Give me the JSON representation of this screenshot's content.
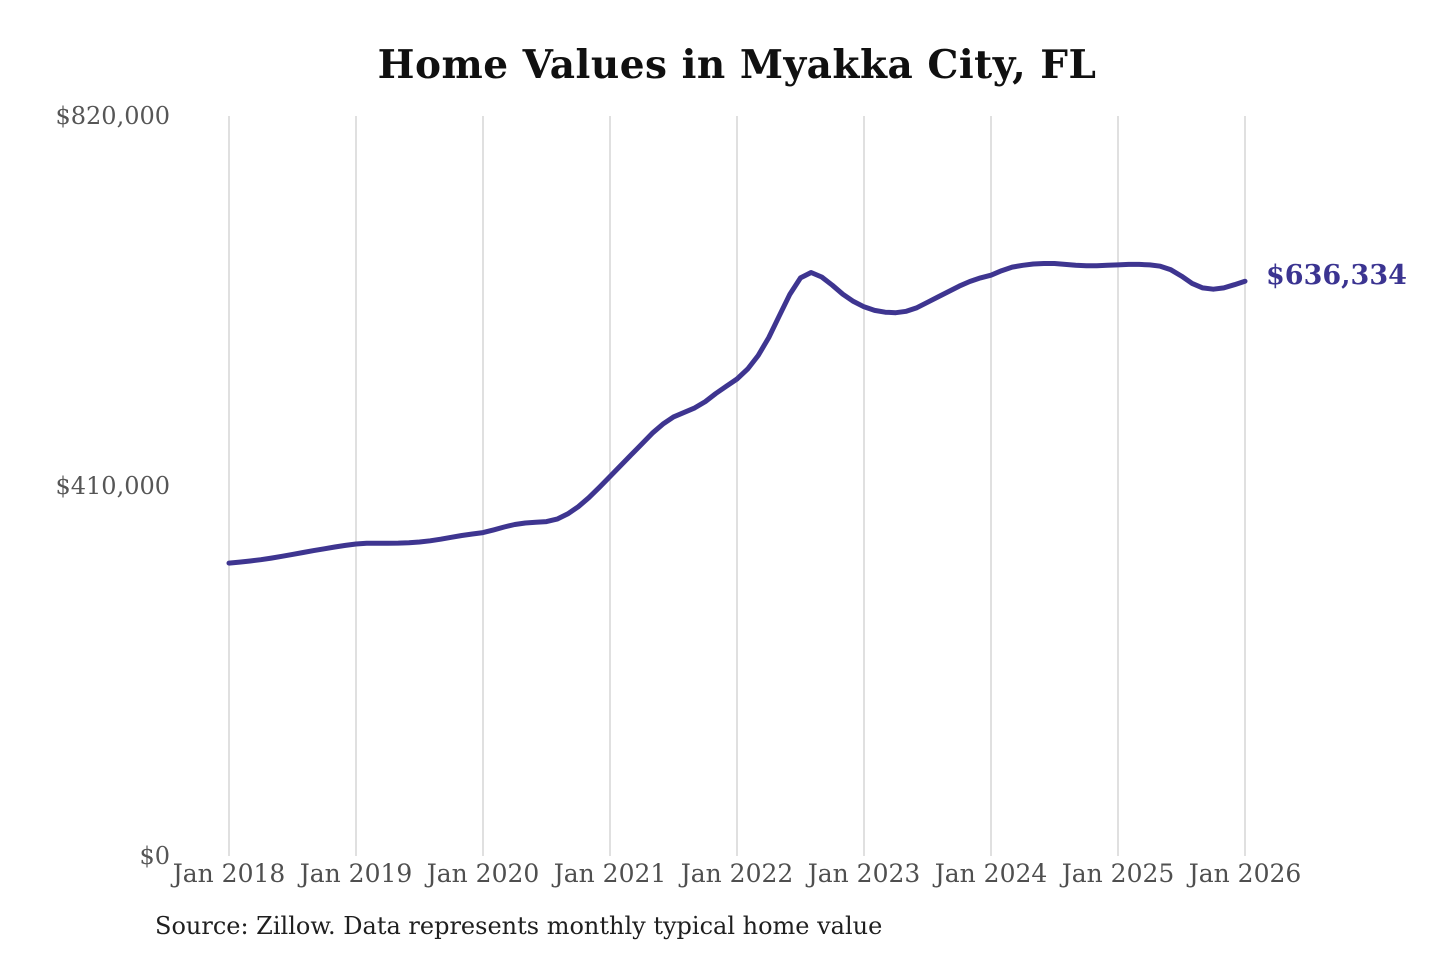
{
  "chart_data": {
    "type": "line",
    "title": "Home Values in Myakka City, FL",
    "series_name": "Monthly typical home value",
    "frequency": "monthly",
    "x_start": "Jan 2018",
    "x_end": "Jan 2026",
    "x_tick_labels": [
      "Jan 2018",
      "Jan 2019",
      "Jan 2020",
      "Jan 2021",
      "Jan 2022",
      "Jan 2023",
      "Jan 2024",
      "Jan 2025",
      "Jan 2026"
    ],
    "y_ticks": [
      {
        "label": "$0",
        "value": 0
      },
      {
        "label": "$410,000",
        "value": 410000
      },
      {
        "label": "$820,000",
        "value": 820000
      }
    ],
    "ylim": [
      0,
      820000
    ],
    "grid": "vertical-only",
    "legend": "none",
    "values": [
      324000,
      325100,
      326300,
      327800,
      329600,
      331600,
      333700,
      335800,
      337900,
      339900,
      341800,
      343600,
      345200,
      345900,
      346100,
      346100,
      346200,
      346600,
      347400,
      348700,
      350500,
      352600,
      354600,
      356300,
      357800,
      360800,
      364000,
      366800,
      368400,
      369200,
      370000,
      372800,
      378500,
      386500,
      396500,
      408000,
      420000,
      432000,
      444000,
      456000,
      468000,
      478000,
      486000,
      491000,
      496000,
      503000,
      512000,
      520000,
      528000,
      539000,
      554000,
      574000,
      598000,
      622000,
      640000,
      646000,
      641000,
      632000,
      622000,
      614000,
      608000,
      604000,
      602000,
      601500,
      603000,
      607000,
      613000,
      619000,
      625000,
      631000,
      636000,
      640000,
      643000,
      648000,
      652000,
      654000,
      655500,
      656000,
      656000,
      655000,
      654000,
      653500,
      653500,
      654000,
      654500,
      655000,
      655000,
      654500,
      653000,
      649000,
      642000,
      634000,
      629000,
      627500,
      629000,
      632500,
      636334
    ],
    "end_value": 636334,
    "end_label": "$636,334",
    "line_color": "#3e3590",
    "grid_color": "#cccccc",
    "tick_label_color": "#4f4f4f",
    "annotation_color": "#3b3491"
  },
  "source_note": "Source: Zillow. Data represents monthly typical home value"
}
